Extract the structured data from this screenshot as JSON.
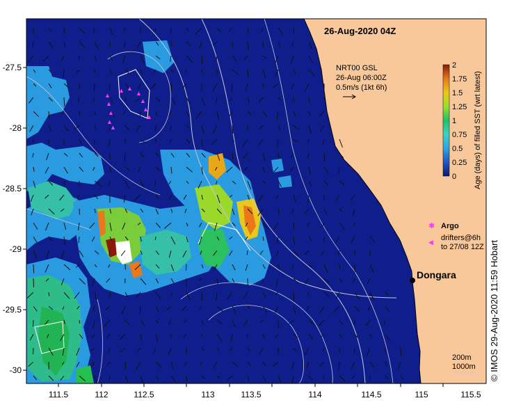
{
  "title": "26-Aug-2020 04Z",
  "vector_legend": {
    "line1": "NRT00 GSL",
    "line2": "26-Aug 06:00Z",
    "line3": "0.5m/s (1kt 6h)"
  },
  "colorbar": {
    "label": "Age (days) of filled SST (wrt latest)",
    "ticks": [
      "0",
      "0.25",
      "0.5",
      "0.75",
      "1",
      "1.25",
      "1.5",
      "1.75",
      "2"
    ],
    "colors": [
      "#0a1a7a",
      "#1f56c8",
      "#2aa6e6",
      "#38d4c4",
      "#1ec46a",
      "#9ade2c",
      "#e8c81a",
      "#e8781a",
      "#8b1a0a"
    ]
  },
  "argo_legend": {
    "label": "Argo"
  },
  "drifter_legend": {
    "line1": "drifters@6h",
    "line2": "to 27/08 12Z"
  },
  "place": {
    "label": "Dongara"
  },
  "contour_legend": {
    "line1": "200m",
    "line2": "1000m"
  },
  "credit": "©  IMOS 29-Aug-2020 11:59 Hobart",
  "x_ticks": [
    "111.5",
    "112",
    "112.5",
    "113",
    "113.5",
    "114",
    "114.5",
    "115",
    "115.5"
  ],
  "y_ticks": [
    "-27.5",
    "-28",
    "-28.5",
    "-29",
    "-29.5",
    "-30"
  ],
  "colors": {
    "ocean_deep": "#101e8c",
    "land": "#f8c89a",
    "coast": "#000000"
  }
}
